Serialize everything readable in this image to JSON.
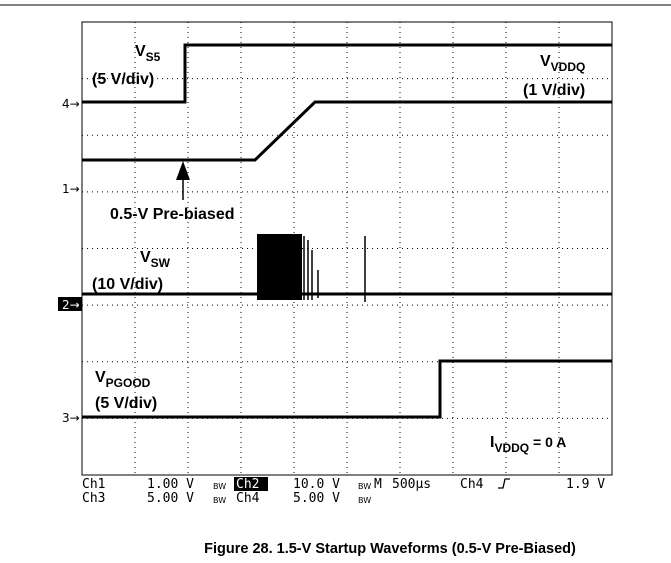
{
  "screen": {
    "markers": [
      "4",
      "1",
      "2",
      "3"
    ],
    "labels": {
      "vs5": {
        "v": "V",
        "sub": "S5",
        "scale": "(5 V/div)"
      },
      "vvddq": {
        "v": "V",
        "sub": "VDDQ",
        "scale": "(1 V/div)"
      },
      "vsw": {
        "v": "V",
        "sub": "SW",
        "scale": "(10 V/div)"
      },
      "vpgood": {
        "v": "V",
        "sub": "PGOOD",
        "scale": "(5 V/div)"
      },
      "prebiased": "0.5-V Pre-biased",
      "current": {
        "v": "I",
        "sub": "VDDQ",
        "rest": " = 0 A"
      }
    }
  },
  "status": {
    "row1": [
      "Ch1",
      "1.00 V",
      "Ch2",
      "10.0 V",
      "M",
      "500µs",
      "Ch4",
      "1.9 V"
    ],
    "row2": [
      "Ch3",
      "5.00 V",
      "Ch4",
      "5.00 V"
    ],
    "bw": "BW"
  },
  "caption": "Figure 28. 1.5-V Startup Waveforms (0.5-V Pre-Biased)"
}
